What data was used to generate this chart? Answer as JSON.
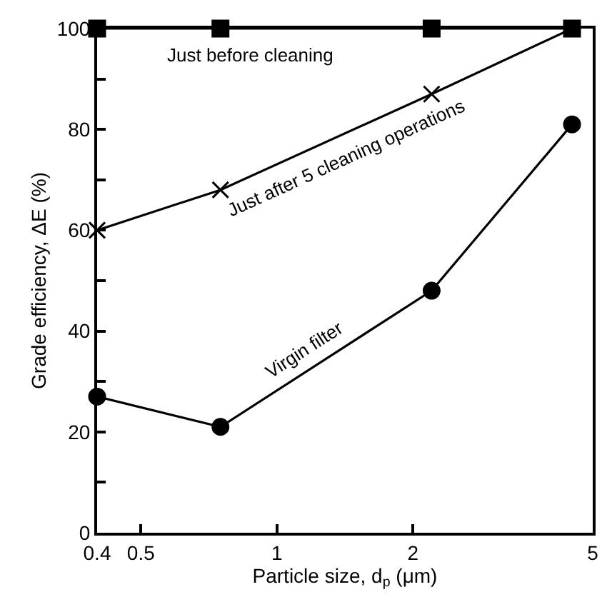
{
  "chart_data": {
    "type": "line",
    "xlabel": "Particle size, d$_{p}$ (μm)",
    "ylabel": "Grade efficiency, ΔE (%)",
    "x": [
      0.4,
      0.75,
      2.2,
      4.5
    ],
    "log": "x",
    "xlim": [
      0.4,
      5
    ],
    "xticks": [
      0.4,
      0.5,
      1,
      2,
      5
    ],
    "ylim": [
      0,
      100
    ],
    "yticks": [
      0,
      {
        "value": 10,
        "label": null
      },
      20,
      {
        "value": 30,
        "label": null
      },
      40,
      {
        "value": 50,
        "label": null
      },
      60,
      {
        "value": 70,
        "label": null
      },
      80,
      {
        "value": 90,
        "label": null
      },
      100
    ],
    "grid": false,
    "legend": false,
    "series": [
      {
        "name": "Just before cleaning",
        "color": "#000000",
        "marker": "square",
        "values": [
          100,
          100,
          100,
          100
        ]
      },
      {
        "name": "Just after 5 cleaning operations",
        "color": "#000000",
        "marker": "cross",
        "values": [
          60,
          68,
          87,
          100
        ]
      },
      {
        "name": "Virgin filter",
        "color": "#000000",
        "marker": "circle",
        "values": [
          27,
          21,
          48,
          81
        ]
      }
    ]
  }
}
